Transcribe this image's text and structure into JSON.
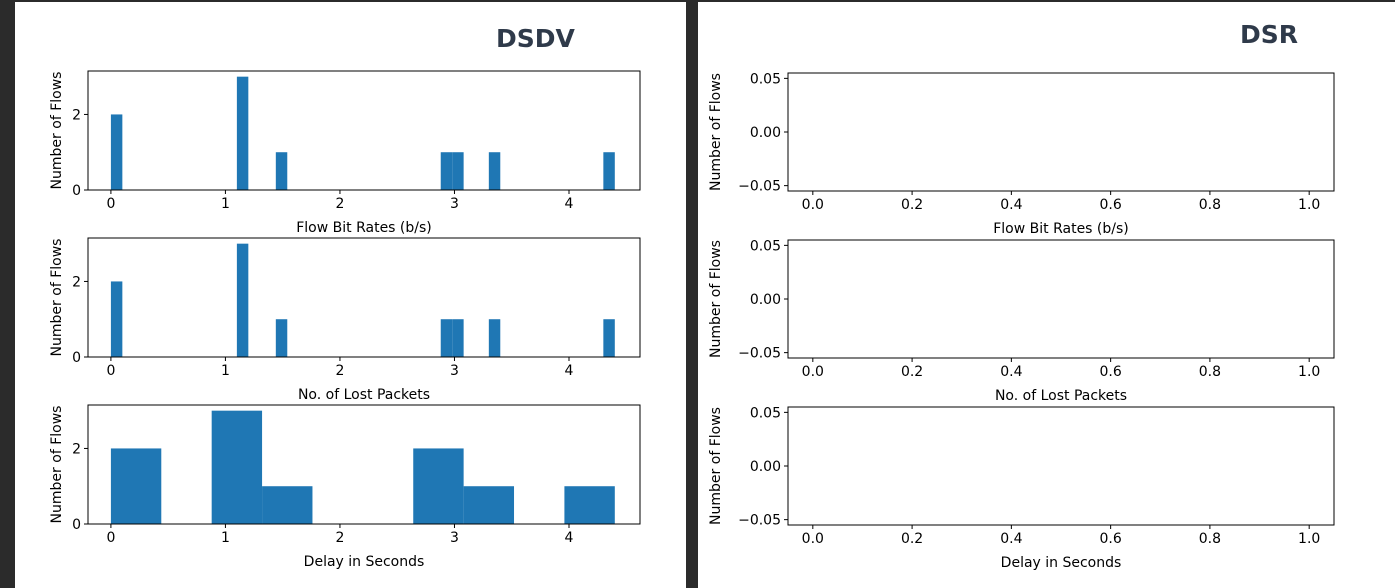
{
  "panels": [
    {
      "title": "DSDV"
    },
    {
      "title": "DSR"
    }
  ],
  "chart_data": [
    {
      "type": "bar",
      "panel": "DSDV",
      "xlabel": "Flow Bit Rates (b/s)",
      "ylabel": "Number of Flows",
      "xlim": [
        -0.2,
        4.62
      ],
      "ylim": [
        0,
        3.15
      ],
      "xticks": [
        0,
        1,
        2,
        3,
        4
      ],
      "yticks": [
        0,
        2
      ],
      "bin_width": 0.1,
      "bins": [
        {
          "x": 0.0,
          "count": 2
        },
        {
          "x": 1.1,
          "count": 3
        },
        {
          "x": 1.44,
          "count": 1
        },
        {
          "x": 2.88,
          "count": 1
        },
        {
          "x": 2.98,
          "count": 1
        },
        {
          "x": 3.3,
          "count": 1
        },
        {
          "x": 4.3,
          "count": 1
        }
      ]
    },
    {
      "type": "bar",
      "panel": "DSDV",
      "xlabel": "No. of Lost Packets",
      "ylabel": "Number of Flows",
      "xlim": [
        -0.2,
        4.62
      ],
      "ylim": [
        0,
        3.15
      ],
      "xticks": [
        0,
        1,
        2,
        3,
        4
      ],
      "yticks": [
        0,
        2
      ],
      "bin_width": 0.1,
      "bins": [
        {
          "x": 0.0,
          "count": 2
        },
        {
          "x": 1.1,
          "count": 3
        },
        {
          "x": 1.44,
          "count": 1
        },
        {
          "x": 2.88,
          "count": 1
        },
        {
          "x": 2.98,
          "count": 1
        },
        {
          "x": 3.3,
          "count": 1
        },
        {
          "x": 4.3,
          "count": 1
        }
      ]
    },
    {
      "type": "bar",
      "panel": "DSDV",
      "xlabel": "Delay in Seconds",
      "ylabel": "Number of Flows",
      "xlim": [
        -0.2,
        4.62
      ],
      "ylim": [
        0,
        3.15
      ],
      "xticks": [
        0,
        1,
        2,
        3,
        4
      ],
      "yticks": [
        0,
        2
      ],
      "bin_width": 0.44,
      "bins": [
        {
          "x": 0.0,
          "count": 2
        },
        {
          "x": 0.88,
          "count": 3
        },
        {
          "x": 1.32,
          "count": 1
        },
        {
          "x": 2.64,
          "count": 2
        },
        {
          "x": 3.08,
          "count": 1
        },
        {
          "x": 3.96,
          "count": 1
        }
      ]
    },
    {
      "type": "bar",
      "panel": "DSR",
      "xlabel": "Flow Bit Rates (b/s)",
      "ylabel": "Number of Flows",
      "xlim": [
        -0.05,
        1.05
      ],
      "ylim": [
        -0.055,
        0.055
      ],
      "xticks": [
        "0.0",
        "0.2",
        "0.4",
        "0.6",
        "0.8",
        "1.0"
      ],
      "yticks": [
        "0.05",
        "0.00",
        "−0.05"
      ],
      "bins": []
    },
    {
      "type": "bar",
      "panel": "DSR",
      "xlabel": "No. of Lost Packets",
      "ylabel": "Number of Flows",
      "xlim": [
        -0.05,
        1.05
      ],
      "ylim": [
        -0.055,
        0.055
      ],
      "xticks": [
        "0.0",
        "0.2",
        "0.4",
        "0.6",
        "0.8",
        "1.0"
      ],
      "yticks": [
        "0.05",
        "0.00",
        "−0.05"
      ],
      "bins": []
    },
    {
      "type": "bar",
      "panel": "DSR",
      "xlabel": "Delay in Seconds",
      "ylabel": "Number of Flows",
      "xlim": [
        -0.05,
        1.05
      ],
      "ylim": [
        -0.055,
        0.055
      ],
      "xticks": [
        "0.0",
        "0.2",
        "0.4",
        "0.6",
        "0.8",
        "1.0"
      ],
      "yticks": [
        "0.05",
        "0.00",
        "−0.05"
      ],
      "bins": []
    }
  ],
  "colors": {
    "bar": "#1f77b4",
    "axes": "#000000"
  }
}
